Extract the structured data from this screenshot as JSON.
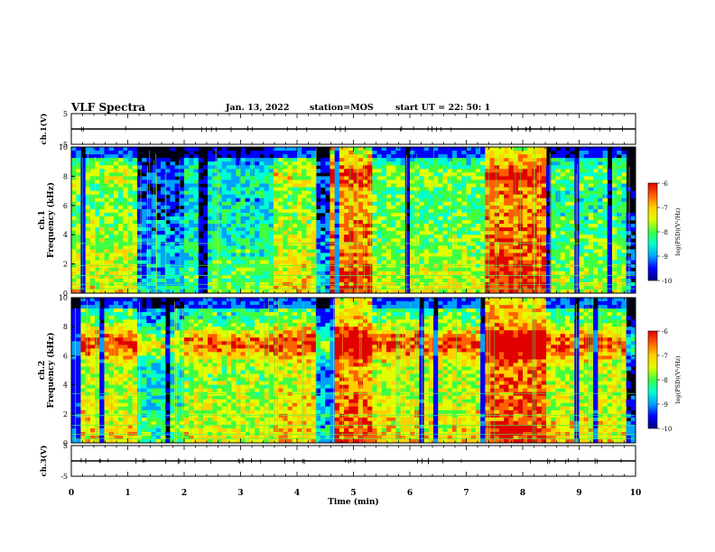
{
  "header": {
    "title": "VLF Spectra",
    "date": "Jan. 13, 2022",
    "station": "station=MOS",
    "start_ut": "start UT =  22: 50: 1"
  },
  "colors": {
    "colormap": [
      "#000080",
      "#0000ff",
      "#00a0ff",
      "#00ffd0",
      "#40ff40",
      "#e0ff00",
      "#ffd000",
      "#ff6000",
      "#e00000",
      "#ffffff"
    ]
  },
  "chart_data": [
    {
      "type": "line",
      "panel": "ch1-waveform",
      "ylabel": "ch.1(V)",
      "ylim": [
        -5,
        5
      ],
      "yticks": [
        "5",
        "-5"
      ],
      "xlim": [
        0,
        10
      ],
      "series": [
        {
          "values": [
            0,
            0,
            0,
            0,
            0,
            0,
            0,
            0,
            0,
            0,
            0
          ]
        }
      ]
    },
    {
      "type": "heatmap",
      "panel": "ch1-spectrogram",
      "ylabel": "ch.1 Frequency (kHz)",
      "ylim": [
        0,
        10
      ],
      "yticks": [
        "0",
        "2",
        "4",
        "6",
        "8",
        "10"
      ],
      "xlim": [
        0,
        10
      ],
      "colorbar": {
        "label": "log(PSD)(V²/Hz)",
        "range": [
          -10,
          -6
        ],
        "ticks": [
          "-6",
          "-7",
          "-8",
          "-9",
          "-10"
        ]
      },
      "segments": [
        {
          "x": [
            0.0,
            1.2
          ],
          "level": 0.55
        },
        {
          "x": [
            1.2,
            2.0
          ],
          "level": 0.15
        },
        {
          "x": [
            2.0,
            3.6
          ],
          "level": 0.35
        },
        {
          "x": [
            3.6,
            4.3
          ],
          "level": 0.6
        },
        {
          "x": [
            4.3,
            4.55
          ],
          "level": 0.1
        },
        {
          "x": [
            4.55,
            5.3
          ],
          "level": 0.85
        },
        {
          "x": [
            5.3,
            7.3
          ],
          "level": 0.5
        },
        {
          "x": [
            7.3,
            8.4
          ],
          "level": 0.9
        },
        {
          "x": [
            8.4,
            9.8
          ],
          "level": 0.45
        }
      ]
    },
    {
      "type": "heatmap",
      "panel": "ch2-spectrogram",
      "ylabel": "ch.2 Frequency (kHz)",
      "ylim": [
        0,
        10
      ],
      "yticks": [
        "0",
        "2",
        "4",
        "6",
        "8",
        "10"
      ],
      "xlim": [
        0,
        10
      ],
      "colorbar": {
        "label": "log(PSD)(V²/Hz)",
        "range": [
          -10,
          -6
        ],
        "ticks": [
          "-6",
          "-7",
          "-8",
          "-9",
          "-10"
        ]
      },
      "segments": [
        {
          "x": [
            0.0,
            1.2
          ],
          "level": 0.6
        },
        {
          "x": [
            1.2,
            2.0
          ],
          "level": 0.3
        },
        {
          "x": [
            2.0,
            3.6
          ],
          "level": 0.55
        },
        {
          "x": [
            3.6,
            4.3
          ],
          "level": 0.65
        },
        {
          "x": [
            4.3,
            4.55
          ],
          "level": 0.15
        },
        {
          "x": [
            4.55,
            5.3
          ],
          "level": 0.85
        },
        {
          "x": [
            5.3,
            7.3
          ],
          "level": 0.6
        },
        {
          "x": [
            7.3,
            8.4
          ],
          "level": 0.9
        },
        {
          "x": [
            8.4,
            9.8
          ],
          "level": 0.6
        }
      ]
    },
    {
      "type": "line",
      "panel": "ch3-waveform",
      "ylabel": "ch.3(V)",
      "ylim": [
        -5,
        5
      ],
      "yticks": [
        "5",
        "-5"
      ],
      "xlim": [
        0,
        10
      ],
      "xlabel": "Time (min)",
      "xticks": [
        "0",
        "1",
        "2",
        "3",
        "4",
        "5",
        "6",
        "7",
        "8",
        "9",
        "10"
      ],
      "series": [
        {
          "values": [
            0,
            0,
            0,
            0,
            0,
            0,
            0,
            0,
            0,
            0,
            0
          ]
        }
      ]
    }
  ]
}
